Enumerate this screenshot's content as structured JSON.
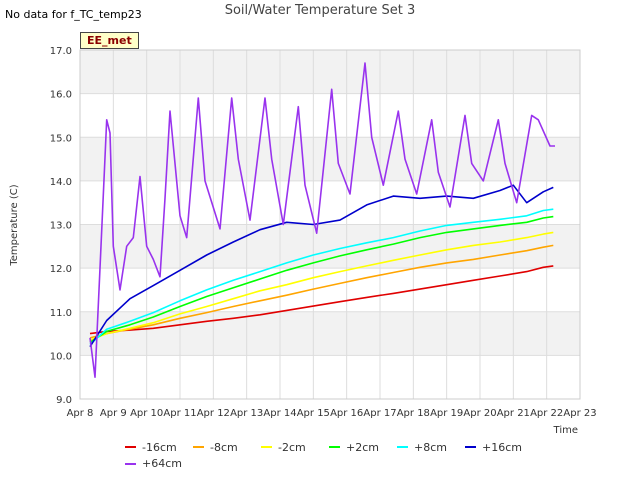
{
  "header": {
    "nodata_note": "No data for f_TC_temp23",
    "title": "Soil/Water Temperature Set 3",
    "site_badge": "EE_met"
  },
  "chart_data": {
    "type": "line",
    "title": "Soil/Water Temperature Set 3",
    "xlabel": "Time",
    "ylabel": "Temperature (C)",
    "x_ticks": [
      "Apr 8",
      "Apr 9",
      "Apr 10",
      "Apr 11",
      "Apr 12",
      "Apr 13",
      "Apr 14",
      "Apr 15",
      "Apr 16",
      "Apr 17",
      "Apr 18",
      "Apr 19",
      "Apr 20",
      "Apr 21",
      "Apr 22",
      "Apr 23"
    ],
    "xlim": [
      0,
      15
    ],
    "ylim": [
      9.0,
      17.0
    ],
    "y_ticks": [
      "9.0",
      "10.0",
      "11.0",
      "12.0",
      "13.0",
      "14.0",
      "15.0",
      "16.0",
      "17.0"
    ],
    "grid": true,
    "legend_position": "bottom",
    "series": [
      {
        "name": "-16cm",
        "color": "#e00000",
        "x": [
          0.3,
          0.8,
          1.5,
          2.2,
          3.0,
          3.8,
          4.6,
          5.4,
          6.2,
          7.0,
          7.8,
          8.6,
          9.4,
          10.2,
          11.0,
          11.8,
          12.6,
          13.4,
          13.9,
          14.2
        ],
        "y": [
          10.5,
          10.55,
          10.58,
          10.62,
          10.7,
          10.78,
          10.85,
          10.93,
          11.03,
          11.13,
          11.23,
          11.33,
          11.42,
          11.52,
          11.62,
          11.72,
          11.82,
          11.92,
          12.02,
          12.05
        ]
      },
      {
        "name": "-8cm",
        "color": "#ffa500",
        "x": [
          0.3,
          0.8,
          1.5,
          2.2,
          3.0,
          3.8,
          4.6,
          5.4,
          6.2,
          7.0,
          7.8,
          8.6,
          9.4,
          10.2,
          11.0,
          11.8,
          12.6,
          13.4,
          13.9,
          14.2
        ],
        "y": [
          10.4,
          10.5,
          10.6,
          10.7,
          10.85,
          10.98,
          11.12,
          11.25,
          11.38,
          11.52,
          11.65,
          11.78,
          11.9,
          12.02,
          12.12,
          12.2,
          12.3,
          12.4,
          12.48,
          12.52
        ]
      },
      {
        "name": "-2cm",
        "color": "#ffff00",
        "x": [
          0.3,
          0.8,
          1.5,
          2.2,
          3.0,
          3.8,
          4.6,
          5.4,
          6.2,
          7.0,
          7.8,
          8.6,
          9.4,
          10.2,
          11.0,
          11.8,
          12.6,
          13.4,
          13.9,
          14.2
        ],
        "y": [
          10.35,
          10.5,
          10.62,
          10.75,
          10.95,
          11.12,
          11.3,
          11.48,
          11.62,
          11.78,
          11.92,
          12.05,
          12.18,
          12.3,
          12.42,
          12.52,
          12.6,
          12.7,
          12.78,
          12.82
        ]
      },
      {
        "name": "+2cm",
        "color": "#00ff00",
        "x": [
          0.3,
          0.8,
          1.5,
          2.2,
          3.0,
          3.8,
          4.6,
          5.4,
          6.2,
          7.0,
          7.8,
          8.6,
          9.4,
          10.2,
          11.0,
          11.8,
          12.6,
          13.4,
          13.9,
          14.2
        ],
        "y": [
          10.3,
          10.55,
          10.7,
          10.88,
          11.12,
          11.35,
          11.55,
          11.75,
          11.95,
          12.12,
          12.28,
          12.42,
          12.55,
          12.7,
          12.82,
          12.9,
          12.98,
          13.05,
          13.15,
          13.18
        ]
      },
      {
        "name": "+8cm",
        "color": "#00ffff",
        "x": [
          0.3,
          0.8,
          1.5,
          2.2,
          3.0,
          3.8,
          4.6,
          5.4,
          6.2,
          7.0,
          7.8,
          8.6,
          9.4,
          10.2,
          11.0,
          11.8,
          12.6,
          13.4,
          13.9,
          14.2
        ],
        "y": [
          10.25,
          10.6,
          10.78,
          10.98,
          11.25,
          11.5,
          11.72,
          11.92,
          12.12,
          12.3,
          12.45,
          12.58,
          12.7,
          12.85,
          12.98,
          13.05,
          13.12,
          13.2,
          13.32,
          13.35
        ]
      },
      {
        "name": "+16cm",
        "color": "#0000cc",
        "x": [
          0.3,
          0.8,
          1.5,
          2.2,
          3.0,
          3.8,
          4.6,
          5.4,
          6.2,
          7.0,
          7.8,
          8.6,
          9.4,
          10.2,
          11.0,
          11.8,
          12.6,
          13.0,
          13.4,
          13.9,
          14.2
        ],
        "y": [
          10.2,
          10.8,
          11.3,
          11.6,
          11.95,
          12.3,
          12.6,
          12.88,
          13.05,
          13.0,
          13.1,
          13.45,
          13.65,
          13.6,
          13.65,
          13.6,
          13.78,
          13.9,
          13.5,
          13.75,
          13.85
        ]
      },
      {
        "name": "+64cm",
        "color": "#9933ee",
        "x": [
          0.3,
          0.45,
          0.6,
          0.8,
          0.9,
          1.0,
          1.2,
          1.4,
          1.6,
          1.8,
          2.0,
          2.2,
          2.4,
          2.55,
          2.7,
          3.0,
          3.2,
          3.55,
          3.75,
          4.2,
          4.55,
          4.75,
          5.1,
          5.55,
          5.75,
          6.1,
          6.55,
          6.75,
          7.1,
          7.55,
          7.75,
          8.1,
          8.55,
          8.75,
          9.1,
          9.55,
          9.75,
          10.1,
          10.55,
          10.75,
          11.1,
          11.55,
          11.75,
          12.1,
          12.55,
          12.75,
          13.1,
          13.55,
          13.75,
          14.1,
          14.25
        ],
        "y": [
          10.4,
          9.5,
          12.0,
          15.4,
          15.1,
          12.5,
          11.5,
          12.5,
          12.7,
          14.1,
          12.5,
          12.2,
          11.8,
          13.6,
          15.6,
          13.2,
          12.7,
          15.9,
          14.0,
          12.9,
          15.9,
          14.5,
          13.1,
          15.9,
          14.5,
          13.0,
          15.7,
          13.9,
          12.8,
          16.1,
          14.4,
          13.7,
          16.7,
          15.0,
          13.9,
          15.6,
          14.5,
          13.7,
          15.4,
          14.2,
          13.4,
          15.5,
          14.4,
          14.0,
          15.4,
          14.4,
          13.5,
          15.5,
          15.4,
          14.8,
          14.8
        ]
      }
    ]
  }
}
